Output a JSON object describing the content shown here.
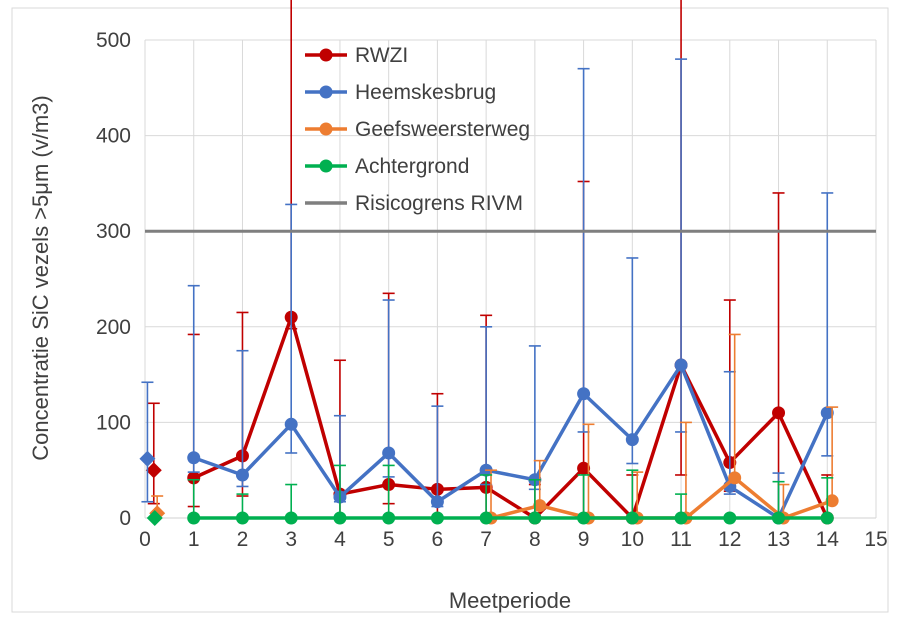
{
  "chart_data": {
    "type": "line",
    "xlabel": "Meetperiode",
    "ylabel": "Concentratie SiC vezels >5μm (v/m3)",
    "xlim": [
      0,
      15
    ],
    "ylim": [
      0,
      500
    ],
    "x_ticks": [
      "0",
      "1",
      "2",
      "3",
      "4",
      "5",
      "6",
      "7",
      "8",
      "9",
      "10",
      "11",
      "12",
      "13",
      "14",
      "15"
    ],
    "y_ticks": [
      "0",
      "100",
      "200",
      "300",
      "400",
      "500"
    ],
    "grid": "vertical and horizontal",
    "legend_position": "top-left inside plot",
    "series": [
      {
        "name": "RWZI",
        "color": "#c00000",
        "x": [
          1,
          2,
          3,
          4,
          5,
          6,
          7,
          8,
          9,
          10,
          11,
          12,
          13,
          14
        ],
        "y": [
          42,
          65,
          210,
          25,
          35,
          30,
          32,
          0,
          52,
          0,
          160,
          58,
          110,
          0
        ],
        "err_low": [
          30,
          42,
          12,
          25,
          20,
          30,
          32,
          0,
          52,
          0,
          115,
          30,
          110,
          0
        ],
        "err_high": [
          150,
          150,
          440,
          140,
          200,
          100,
          180,
          35,
          300,
          45,
          410,
          170,
          230,
          45
        ],
        "first_point": {
          "x": 0.18,
          "y": 50,
          "err_low": 35,
          "err_high": 70,
          "marker": "diamond"
        }
      },
      {
        "name": "Heemskesbrug",
        "color": "#4472c4",
        "x": [
          1,
          2,
          3,
          4,
          5,
          6,
          7,
          8,
          9,
          10,
          11,
          12,
          13,
          14
        ],
        "y": [
          63,
          45,
          98,
          22,
          68,
          17,
          50,
          40,
          130,
          82,
          160,
          33,
          0,
          110
        ],
        "err_low": [
          15,
          12,
          30,
          5,
          25,
          5,
          15,
          10,
          40,
          25,
          70,
          8,
          0,
          45
        ],
        "err_high": [
          180,
          130,
          230,
          85,
          160,
          100,
          150,
          140,
          340,
          190,
          320,
          120,
          47,
          230
        ],
        "first_point": {
          "x": 0.05,
          "y": 62,
          "err_low": 45,
          "err_high": 80,
          "marker": "diamond"
        }
      },
      {
        "name": "Geefsweersterweg",
        "color": "#ed7d31",
        "x": [
          7.1,
          8.1,
          9.1,
          10.1,
          11.1,
          12.1,
          13.1,
          14.1
        ],
        "y": [
          0,
          13,
          0,
          0,
          0,
          42,
          0,
          18
        ],
        "err_low": [
          0,
          0,
          0,
          0,
          0,
          0,
          0,
          0
        ],
        "err_high": [
          50,
          47,
          98,
          48,
          100,
          150,
          35,
          98
        ],
        "first_point": {
          "x": 0.25,
          "y": 5,
          "err_low": 0,
          "err_high": 18,
          "marker": "diamond"
        }
      },
      {
        "name": "Achtergrond",
        "color": "#00b050",
        "x": [
          1,
          2,
          3,
          4,
          5,
          6,
          7,
          8,
          9,
          10,
          11,
          12,
          13,
          14
        ],
        "y": [
          0,
          0,
          0,
          0,
          0,
          0,
          0,
          0,
          0,
          0,
          0,
          0,
          0,
          0
        ],
        "err_low": [
          0,
          0,
          0,
          0,
          0,
          0,
          0,
          0,
          0,
          0,
          0,
          0,
          0,
          0
        ],
        "err_high": [
          40,
          25,
          35,
          55,
          55,
          0,
          45,
          40,
          45,
          50,
          25,
          0,
          38,
          42
        ],
        "first_point": {
          "x": 0.2,
          "y": 0,
          "err_low": 0,
          "err_high": 0,
          "marker": "diamond"
        }
      },
      {
        "name": "Risicogrens RIVM",
        "color": "#7f7f7f",
        "type": "hline",
        "y": 300
      }
    ]
  }
}
